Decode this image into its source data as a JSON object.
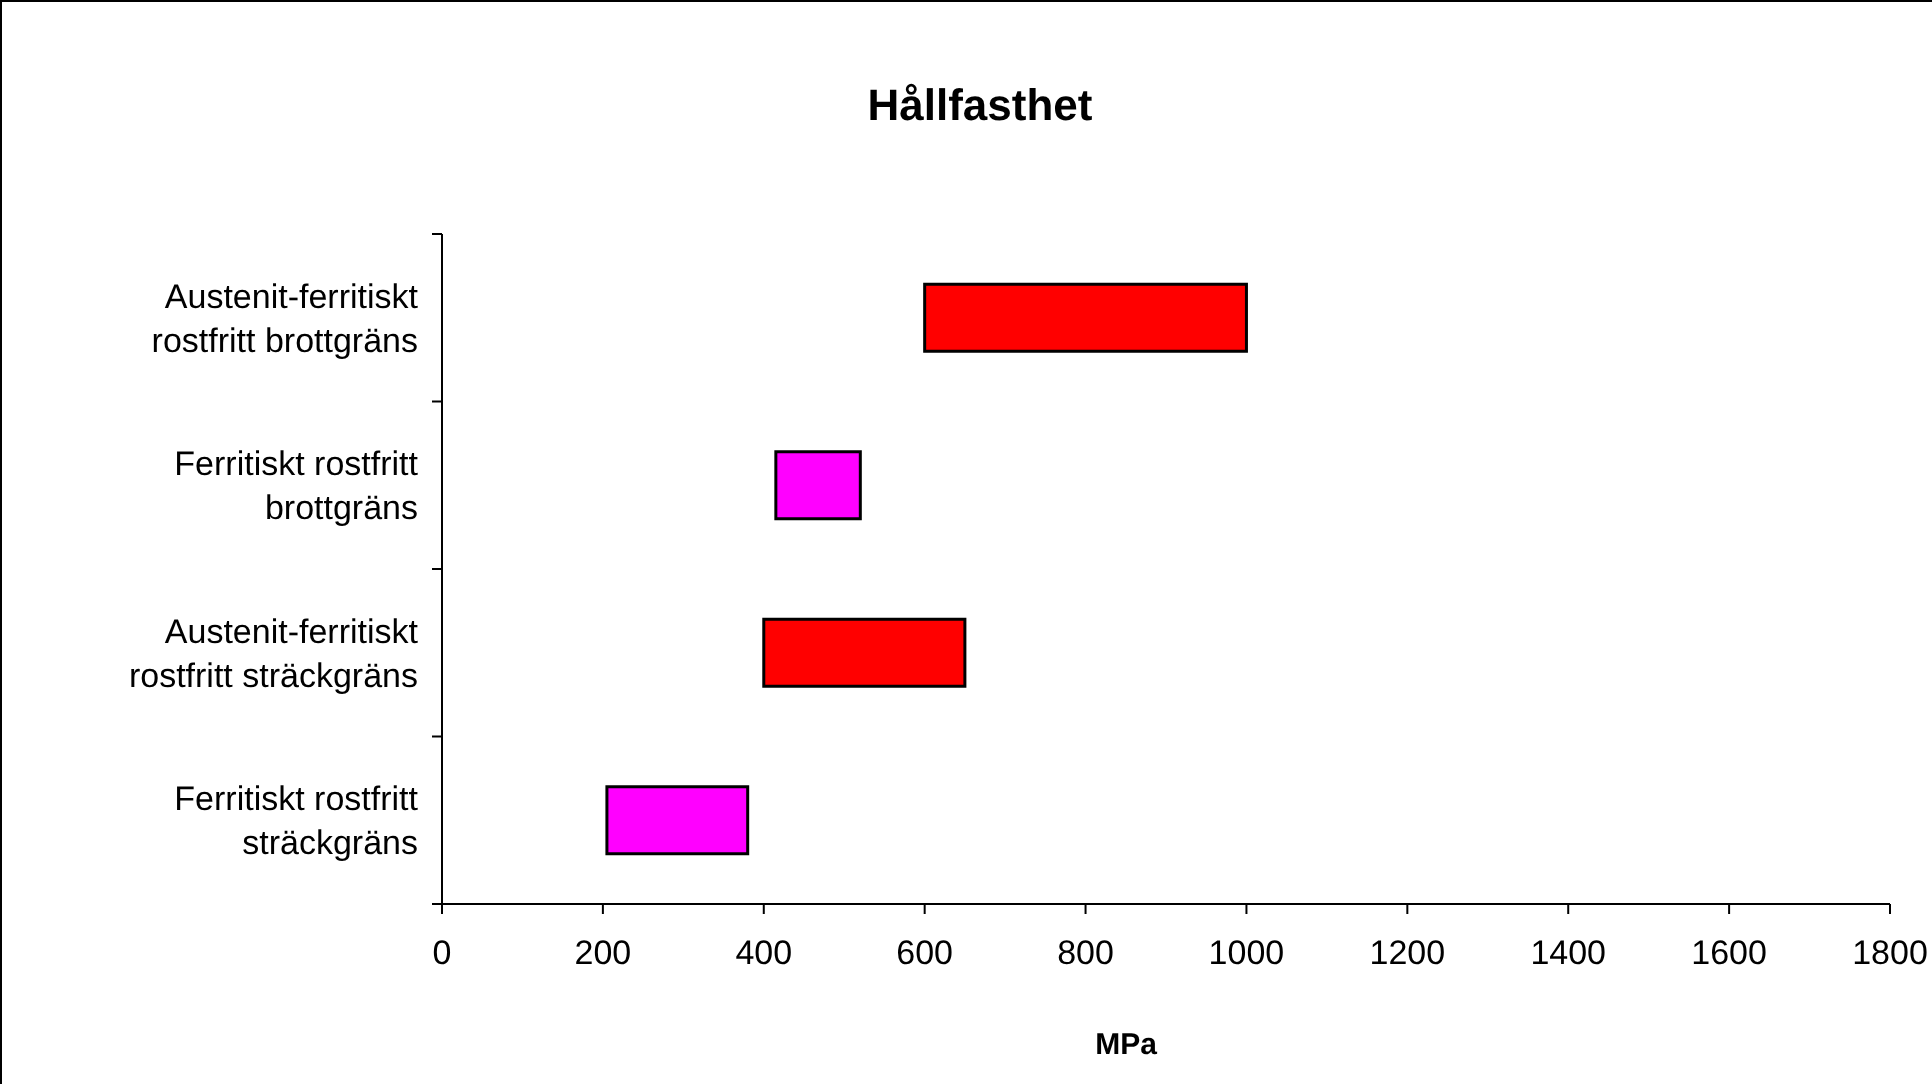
{
  "chart_data": {
    "type": "bar",
    "orientation": "horizontal",
    "title": "Hållfasthet",
    "xlabel": "MPa",
    "categories": [
      "Austenit-ferritiskt rostfritt brottgräns",
      "Ferritiskt rostfritt brottgräns",
      "Austenit-ferritiskt rostfritt sträckgräns",
      "Ferritiskt rostfritt sträckgräns"
    ],
    "base": [
      600,
      415,
      400,
      205
    ],
    "values": [
      400,
      105,
      250,
      175
    ],
    "colors": [
      "#ff0000",
      "#ff00ff",
      "#ff0000",
      "#ff00ff"
    ],
    "xlim": [
      0,
      1800
    ],
    "xticks": [
      0,
      200,
      400,
      600,
      800,
      1000,
      1200,
      1400,
      1600,
      1800
    ],
    "grid": false
  }
}
